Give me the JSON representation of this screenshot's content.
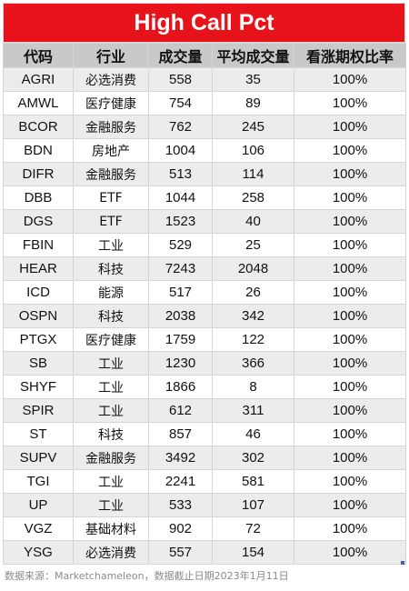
{
  "title": "High Call Pct",
  "headers": [
    "代码",
    "行业",
    "成交量",
    "平均成交量",
    "看涨期权比率"
  ],
  "rows": [
    [
      "AGRI",
      "必选消费",
      "558",
      "35",
      "100%"
    ],
    [
      "AMWL",
      "医疗健康",
      "754",
      "89",
      "100%"
    ],
    [
      "BCOR",
      "金融服务",
      "762",
      "245",
      "100%"
    ],
    [
      "BDN",
      "房地产",
      "1004",
      "106",
      "100%"
    ],
    [
      "DIFR",
      "金融服务",
      "513",
      "114",
      "100%"
    ],
    [
      "DBB",
      "ETF",
      "1044",
      "258",
      "100%"
    ],
    [
      "DGS",
      "ETF",
      "1523",
      "40",
      "100%"
    ],
    [
      "FBIN",
      "工业",
      "529",
      "25",
      "100%"
    ],
    [
      "HEAR",
      "科技",
      "7243",
      "2048",
      "100%"
    ],
    [
      "ICD",
      "能源",
      "517",
      "26",
      "100%"
    ],
    [
      "OSPN",
      "科技",
      "2038",
      "342",
      "100%"
    ],
    [
      "PTGX",
      "医疗健康",
      "1759",
      "122",
      "100%"
    ],
    [
      "SB",
      "工业",
      "1230",
      "366",
      "100%"
    ],
    [
      "SHYF",
      "工业",
      "1866",
      "8",
      "100%"
    ],
    [
      "SPIR",
      "工业",
      "612",
      "311",
      "100%"
    ],
    [
      "ST",
      "科技",
      "857",
      "46",
      "100%"
    ],
    [
      "SUPV",
      "金融服务",
      "3492",
      "302",
      "100%"
    ],
    [
      "TGI",
      "工业",
      "2241",
      "581",
      "100%"
    ],
    [
      "UP",
      "工业",
      "533",
      "107",
      "100%"
    ],
    [
      "VGZ",
      "基础材料",
      "902",
      "72",
      "100%"
    ],
    [
      "YSG",
      "必选消费",
      "557",
      "154",
      "100%"
    ]
  ],
  "footnote": "数据来源：Marketchameleon，数据截止日期2023年1月11日",
  "colors": {
    "title_bg": "#e8121b",
    "header_bg": "#c9c9c9",
    "stripe_bg": "#ececec"
  }
}
